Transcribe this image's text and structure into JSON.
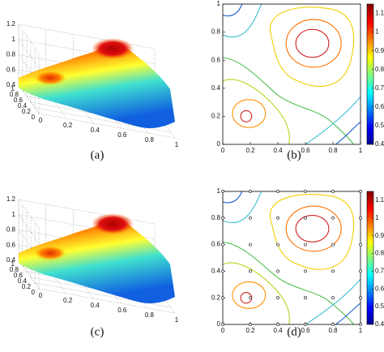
{
  "chart_data": [
    {
      "type": "surface",
      "caption": "(a)",
      "xlim": [
        0,
        1
      ],
      "ylim": [
        0,
        1
      ],
      "zlim": [
        0.4,
        1.2
      ],
      "xticks": [
        0,
        0.2,
        0.4,
        0.6,
        0.8,
        1
      ],
      "yticks": [
        0,
        0.2,
        0.4,
        0.6,
        0.8,
        1
      ],
      "zticks": [
        0.4,
        0.6,
        0.8,
        1,
        1.2
      ]
    },
    {
      "type": "contour",
      "caption": "(b)",
      "xlim": [
        0,
        1
      ],
      "ylim": [
        0,
        1
      ],
      "xticks": [
        0,
        0.2,
        0.4,
        0.6,
        0.8,
        1
      ],
      "yticks": [
        0,
        0.2,
        0.4,
        0.6,
        0.8,
        1
      ],
      "colorbar": {
        "lim": [
          0.4,
          1.15
        ],
        "ticks": [
          0.4,
          0.5,
          0.6,
          0.7,
          0.8,
          0.9,
          1,
          1.1
        ]
      }
    },
    {
      "type": "surface",
      "caption": "(c)",
      "xlim": [
        0,
        1
      ],
      "ylim": [
        0,
        1
      ],
      "zlim": [
        0.4,
        1.2
      ],
      "xticks": [
        0,
        0.2,
        0.4,
        0.6,
        0.8,
        1
      ],
      "yticks": [
        0,
        0.2,
        0.4,
        0.6,
        0.8,
        1
      ],
      "zticks": [
        0.4,
        0.6,
        0.8,
        1,
        1.2
      ]
    },
    {
      "type": "contour",
      "caption": "(d)",
      "xlim": [
        0,
        1
      ],
      "ylim": [
        0,
        1
      ],
      "xticks": [
        0,
        0.2,
        0.4,
        0.6,
        0.8,
        1
      ],
      "yticks": [
        0,
        0.2,
        0.4,
        0.6,
        0.8,
        1
      ],
      "colorbar": {
        "lim": [
          0.4,
          1.15
        ],
        "ticks": [
          0.4,
          0.5,
          0.6,
          0.7,
          0.8,
          0.9,
          1,
          1.1
        ]
      },
      "x": [
        0,
        0.2,
        0.4,
        0.6,
        0.8,
        1,
        0,
        0.2,
        0.4,
        0.6,
        0.8,
        1,
        0,
        0.2,
        0.4,
        0.6,
        0.8,
        1,
        0,
        0.2,
        0.4,
        0.6,
        0.8,
        1,
        0,
        0.2,
        0.4,
        0.6,
        0.8,
        1,
        0,
        0.2,
        0.4,
        0.6,
        0.8,
        1
      ],
      "y": [
        0,
        0,
        0,
        0,
        0,
        0,
        0.2,
        0.2,
        0.2,
        0.2,
        0.2,
        0.2,
        0.4,
        0.4,
        0.4,
        0.4,
        0.4,
        0.4,
        0.6,
        0.6,
        0.6,
        0.6,
        0.6,
        0.6,
        0.8,
        0.8,
        0.8,
        0.8,
        0.8,
        0.8,
        1,
        1,
        1,
        1,
        1,
        1
      ]
    }
  ]
}
